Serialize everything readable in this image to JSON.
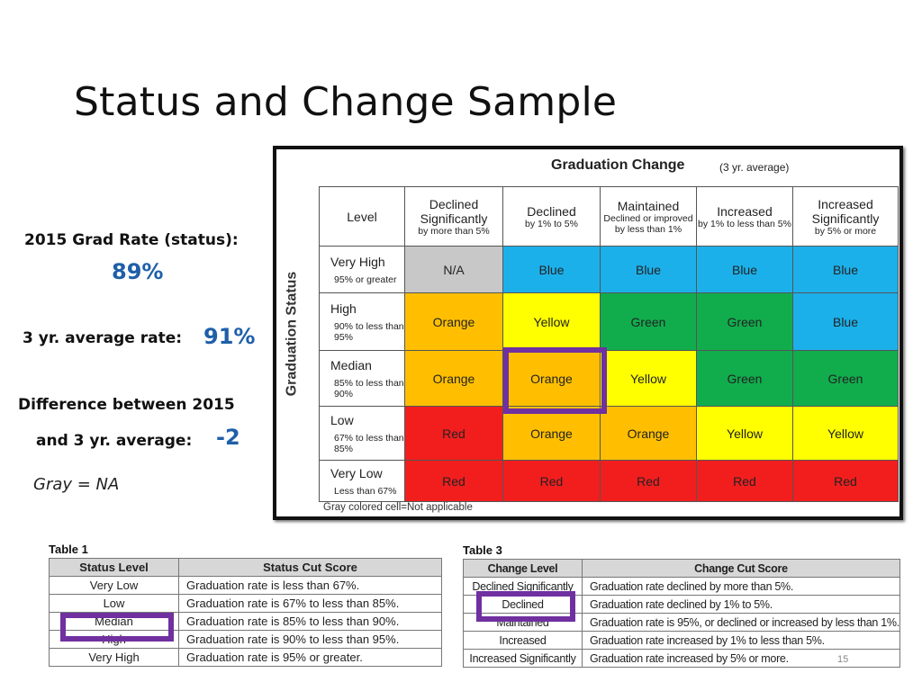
{
  "slide": {
    "title": "Status and Change Sample",
    "page_number": "15"
  },
  "left_panel": {
    "grad_rate_label": "2015 Grad Rate (status):",
    "grad_rate_value": "89%",
    "avg_rate_label": "3 yr. average rate:",
    "avg_rate_value": "91%",
    "difference_label_1": "Difference between 2015",
    "difference_label_2": "and 3 yr. average:",
    "difference_value": "-2",
    "gray_note": "Gray = NA"
  },
  "matrix": {
    "title": "Graduation Change",
    "subtitle": "(3 yr. average)",
    "row_axis_label": "Graduation Status",
    "footnote": "Gray colored cell=Not applicable",
    "corner_header": "Level",
    "columns": [
      {
        "main": "Declined Significantly",
        "sub": "by more than 5%"
      },
      {
        "main": "Declined",
        "sub": "by 1% to 5%"
      },
      {
        "main": "Maintained",
        "sub": "Declined or improved by less than 1%"
      },
      {
        "main": "Increased",
        "sub": "by 1% to less than 5%"
      },
      {
        "main": "Increased Significantly",
        "sub": "by 5% or more"
      }
    ],
    "rows": [
      {
        "level": "Very High",
        "range": "95% or greater",
        "cells": [
          "N/A",
          "Blue",
          "Blue",
          "Blue",
          "Blue"
        ],
        "colors": [
          "gray",
          "blue",
          "blue",
          "blue",
          "blue"
        ]
      },
      {
        "level": "High",
        "range": "90% to less than 95%",
        "cells": [
          "Orange",
          "Yellow",
          "Green",
          "Green",
          "Blue"
        ],
        "colors": [
          "orange",
          "yellow",
          "green",
          "green",
          "blue"
        ]
      },
      {
        "level": "Median",
        "range": "85% to less than 90%",
        "cells": [
          "Orange",
          "Orange",
          "Yellow",
          "Green",
          "Green"
        ],
        "colors": [
          "orange",
          "orange",
          "yellow",
          "green",
          "green"
        ]
      },
      {
        "level": "Low",
        "range": "67% to less than 85%",
        "cells": [
          "Red",
          "Orange",
          "Orange",
          "Yellow",
          "Yellow"
        ],
        "colors": [
          "red",
          "orange",
          "orange",
          "yellow",
          "yellow"
        ]
      },
      {
        "level": "Very Low",
        "range": "Less than 67%",
        "cells": [
          "Red",
          "Red",
          "Red",
          "Red",
          "Red"
        ],
        "colors": [
          "red",
          "red",
          "red",
          "red",
          "red"
        ]
      }
    ],
    "highlight_color": "#7030a0"
  },
  "table1": {
    "caption": "Table 1",
    "headers": [
      "Status Level",
      "Status Cut Score"
    ],
    "rows": [
      [
        "Very Low",
        "Graduation rate is less than 67%."
      ],
      [
        "Low",
        "Graduation rate is 67% to less than 85%."
      ],
      [
        "Median",
        "Graduation rate is 85% to less than 90%."
      ],
      [
        "High",
        "Graduation rate is 90% to less than 95%."
      ],
      [
        "Very High",
        "Graduation rate is 95% or greater."
      ]
    ]
  },
  "table3": {
    "caption": "Table 3",
    "headers": [
      "Change Level",
      "Change Cut Score"
    ],
    "rows": [
      [
        "Declined Significantly",
        "Graduation rate declined by more than 5%."
      ],
      [
        "Declined",
        "Graduation rate declined by 1% to 5%."
      ],
      [
        "Maintained",
        "Graduation rate is 95%, or declined or increased by less than 1%."
      ],
      [
        "Increased",
        "Graduation rate increased by 1% to less than 5%."
      ],
      [
        "Increased Significantly",
        "Graduation rate increased by 5% or more."
      ]
    ]
  }
}
